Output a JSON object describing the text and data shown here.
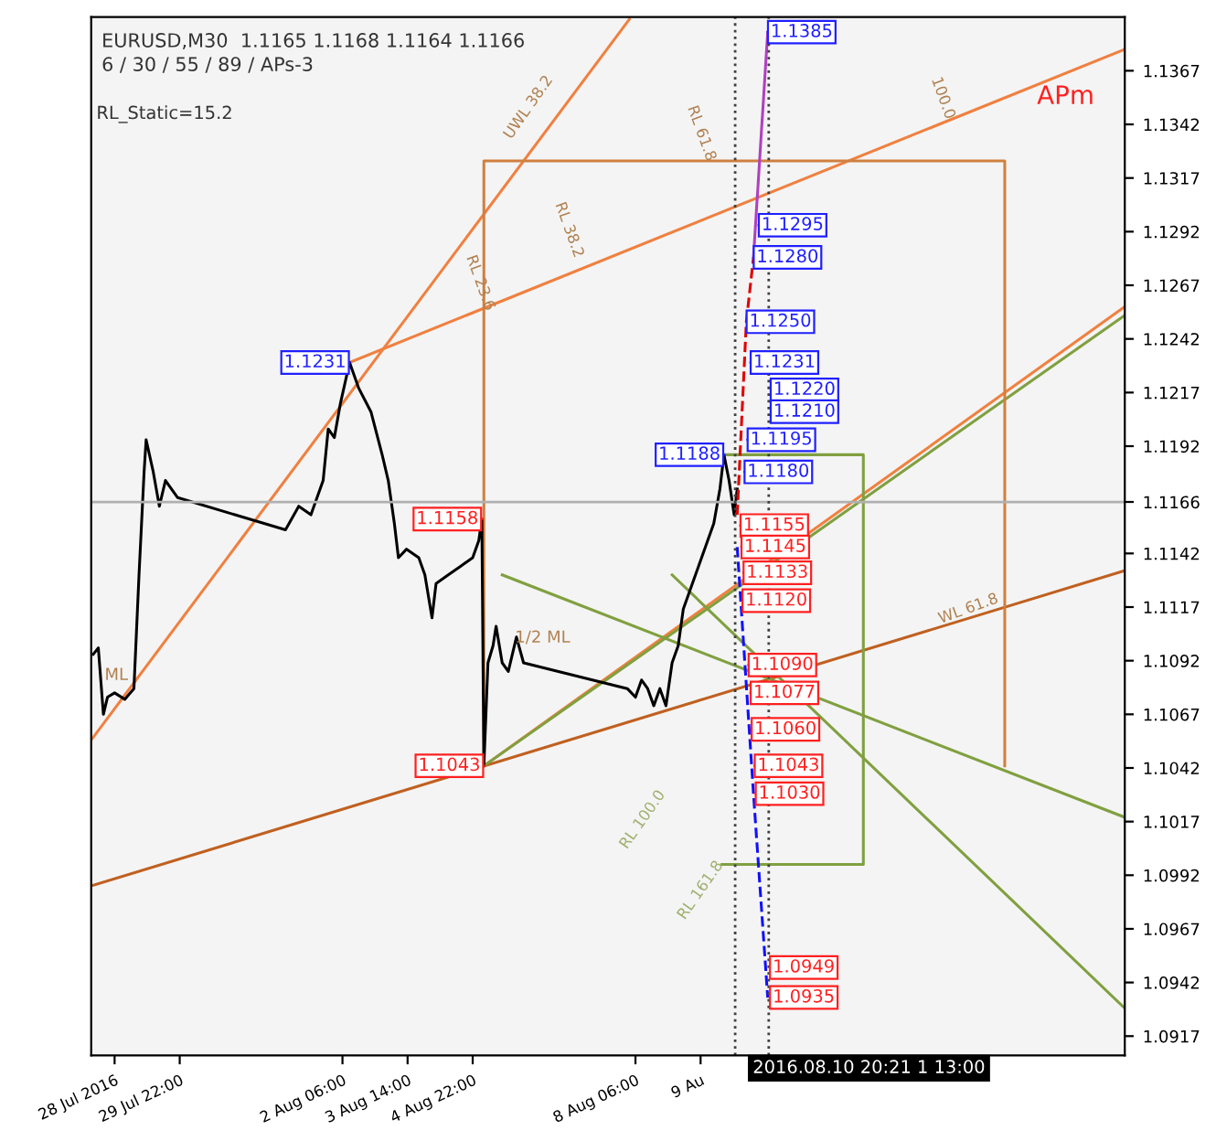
{
  "chart_data": {
    "type": "line",
    "title": "EURUSD,M30  1.1165 1.1168 1.1164 1.1166",
    "subtitle": "6 / 30 / 55 / 89 / APs-3",
    "xlim": [
      "2016-07-28T02:30",
      "2016-08-18T06:30"
    ],
    "ylim": [
      1.0908,
      1.1392
    ],
    "xticks": [
      {
        "value": "2016-07-28T14:00",
        "label": "28 Jul 2016"
      },
      {
        "value": "2016-07-29T22:00",
        "label": "29 Jul 22:00"
      },
      {
        "value": "2016-08-02T06:00",
        "label": "2 Aug 06:00"
      },
      {
        "value": "2016-08-03T14:00",
        "label": "3 Aug 14:00"
      },
      {
        "value": "2016-08-04T22:00",
        "label": "4 Aug 22:00"
      },
      {
        "value": "2016-08-08T06:00",
        "label": "8 Aug 06:00"
      },
      {
        "value": "2016-08-09T14:00",
        "label": "9 Au"
      }
    ],
    "yticks": [
      1.0917,
      1.0942,
      1.0967,
      1.0992,
      1.1017,
      1.1042,
      1.1067,
      1.1092,
      1.1117,
      1.1142,
      1.1166,
      1.1192,
      1.1217,
      1.1242,
      1.1267,
      1.1292,
      1.1317,
      1.1342,
      1.1367
    ],
    "grid": false,
    "legend": false,
    "series": [
      {
        "color": "#f08040",
        "x": [
          "2016-07-28T02:30",
          "2016-08-08T03:00"
        ],
        "values": [
          1.1055,
          1.1391
        ]
      },
      {
        "color": "#f08040",
        "x": [
          "2016-08-02T09:30",
          "2016-08-18T06:30"
        ],
        "values": [
          1.1231,
          1.1377
        ]
      },
      {
        "color": "#f08040",
        "x": [
          "2016-08-05T03:30",
          "2016-08-18T06:30"
        ],
        "values": [
          1.1043,
          1.1257
        ]
      },
      {
        "color": "#c06020",
        "x": [
          "2016-07-28T02:30",
          "2016-08-18T06:30"
        ],
        "values": [
          1.0987,
          1.1134
        ]
      },
      {
        "color": "#80a040",
        "x": [
          "2016-08-05T03:30",
          "2016-08-18T06:30"
        ],
        "values": [
          1.1043,
          1.1253
        ]
      },
      {
        "color": "#80a040",
        "x": [
          "2016-08-05T12:30",
          "2016-08-18T06:30"
        ],
        "values": [
          1.1132,
          1.1019
        ]
      },
      {
        "color": "#80a040",
        "x": [
          "2016-08-09T00:00",
          "2016-08-18T06:30"
        ],
        "values": [
          1.1132,
          1.093
        ]
      },
      {
        "color": "#d08040",
        "x": [
          "2016-08-05T03:30",
          "2016-08-05T03:30",
          "2016-08-15T19:30",
          "2016-08-15T19:30"
        ],
        "values": [
          1.1043,
          1.1325,
          1.1325,
          1.1043
        ]
      },
      {
        "color": "#80a040",
        "x": [
          "2016-08-10T00:30",
          "2016-08-12T22:00",
          "2016-08-12T22:00",
          "2016-08-10T00:30"
        ],
        "values": [
          1.1188,
          1.1188,
          1.0997,
          1.0997
        ]
      },
      {
        "color": "#000000",
        "x": [
          "2016-07-28T03:30",
          "2016-07-28T06:00",
          "2016-07-28T08:30",
          "2016-07-28T10:30",
          "2016-07-28T14:00",
          "2016-07-28T19:00",
          "2016-07-28T23:30",
          "2016-07-29T02:00",
          "2016-07-29T04:30",
          "2016-07-29T05:30",
          "2016-07-29T09:00",
          "2016-07-29T12:00",
          "2016-07-29T15:00",
          "2016-07-29T21:00",
          "2016-08-01T02:00",
          "2016-08-01T08:30",
          "2016-08-01T14:30",
          "2016-08-01T17:30",
          "2016-08-01T20:30",
          "2016-08-01T23:00",
          "2016-08-02T02:00",
          "2016-08-02T05:00",
          "2016-08-02T09:30",
          "2016-08-02T14:00",
          "2016-08-02T20:00",
          "2016-08-03T01:30",
          "2016-08-03T04:30",
          "2016-08-03T07:30",
          "2016-08-03T09:30",
          "2016-08-03T13:30",
          "2016-08-03T19:30",
          "2016-08-03T22:30",
          "2016-08-04T02:00",
          "2016-08-04T04:00",
          "2016-08-04T10:00",
          "2016-08-04T16:00",
          "2016-08-04T22:00",
          "2016-08-05T01:00",
          "2016-08-05T02:30",
          "2016-08-05T03:30",
          "2016-08-05T05:30",
          "2016-08-05T08:00",
          "2016-08-05T09:30",
          "2016-08-05T12:30",
          "2016-08-05T15:30",
          "2016-08-05T19:30",
          "2016-08-05T23:00",
          "2016-08-08T02:00",
          "2016-08-08T06:00",
          "2016-08-08T09:00",
          "2016-08-08T12:00",
          "2016-08-08T15:00",
          "2016-08-08T18:00",
          "2016-08-08T21:00",
          "2016-08-09T00:00",
          "2016-08-09T03:00",
          "2016-08-09T05:30",
          "2016-08-09T08:30",
          "2016-08-09T11:30",
          "2016-08-09T14:30",
          "2016-08-09T17:30",
          "2016-08-09T20:30",
          "2016-08-09T23:30",
          "2016-08-10T01:30",
          "2016-08-10T04:00",
          "2016-08-10T06:30",
          "2016-08-10T08:00"
        ],
        "values": [
          1.1095,
          1.1098,
          1.1067,
          1.1075,
          1.1077,
          1.1074,
          1.1079,
          1.1132,
          1.118,
          1.1195,
          1.118,
          1.1164,
          1.1176,
          1.1168,
          1.1153,
          1.1164,
          1.116,
          1.1168,
          1.1176,
          1.12,
          1.1196,
          1.1212,
          1.1231,
          1.1219,
          1.1208,
          1.1188,
          1.1176,
          1.1156,
          1.114,
          1.1144,
          1.114,
          1.1132,
          1.1112,
          1.1128,
          1.1132,
          1.1136,
          1.114,
          1.1148,
          1.1158,
          1.1043,
          1.1091,
          1.1099,
          1.1108,
          1.1091,
          1.1087,
          1.1103,
          1.1091,
          1.1079,
          1.1075,
          1.1083,
          1.1079,
          1.1071,
          1.1079,
          1.1071,
          1.1091,
          1.1099,
          1.1116,
          1.1124,
          1.1132,
          1.114,
          1.1148,
          1.1156,
          1.1172,
          1.1188,
          1.1176,
          1.116,
          1.1172
        ]
      },
      {
        "color": "#e00000",
        "line_style": "dashed",
        "x": [
          "2016-08-10T08:00",
          "2016-08-10T12:30",
          "2016-08-10T16:00"
        ],
        "values": [
          1.116,
          1.125,
          1.128
        ]
      },
      {
        "color": "#b040c0",
        "x": [
          "2016-08-10T16:00",
          "2016-08-10T23:00"
        ],
        "values": [
          1.128,
          1.1385
        ]
      },
      {
        "color": "#1010ff",
        "line_style": "dashed",
        "x": [
          "2016-08-10T08:00",
          "2016-08-10T16:00",
          "2016-08-10T23:00"
        ],
        "values": [
          1.1145,
          1.103,
          1.0935
        ]
      }
    ],
    "ref_lines": [
      {
        "axis": "y",
        "value": 1.1166,
        "color": "#b0b0b0"
      },
      {
        "axis": "x",
        "value": "2016-08-10T07:00",
        "color": "#404040",
        "line_style": "dotted"
      },
      {
        "axis": "x",
        "value": "2016-08-10T23:30",
        "color": "#404040",
        "line_style": "dotted"
      }
    ],
    "annotations": [
      "RL_Static=15.2",
      "APm",
      "2016.08.10 20:21 1 13:00",
      "1.1220",
      "1.1210",
      "RL 23.6",
      "RL 38.2",
      "RL 61.8",
      "RL 161.8",
      "RL 100.0",
      "1/2 ML",
      "ML",
      "UWL 38.2",
      "100.0",
      "WL 61.8",
      {
        "text": "1.1231",
        "x": "2016-08-02T09:30",
        "y": 1.1231
      },
      {
        "text": "1.1158",
        "x": "2016-08-05T02:30",
        "y": 1.1158
      },
      {
        "text": "1.1043",
        "x": "2016-08-05T03:30",
        "y": 1.1043
      },
      {
        "text": "1.1188",
        "x": "2016-08-10T01:30",
        "y": 1.1188
      },
      {
        "text": "1.1385",
        "x": "2016-08-10T23:00",
        "y": 1.1385
      },
      {
        "text": "1.1295",
        "x": "2016-08-10T18:30",
        "y": 1.1295
      },
      {
        "text": "1.1280",
        "x": "2016-08-10T16:00",
        "y": 1.128
      },
      {
        "text": "1.1250",
        "x": "2016-08-10T12:30",
        "y": 1.125
      },
      {
        "text": "1.1231",
        "x": "2016-08-10T14:30",
        "y": 1.1231
      },
      {
        "text": "1.1195",
        "x": "2016-08-10T13:00",
        "y": 1.1195
      },
      {
        "text": "1.1180",
        "x": "2016-08-10T11:30",
        "y": 1.118
      },
      {
        "text": "1.1155",
        "x": "2016-08-10T09:30",
        "y": 1.1155
      },
      {
        "text": "1.1145",
        "x": "2016-08-10T10:00",
        "y": 1.1145
      },
      {
        "text": "1.1133",
        "x": "2016-08-10T11:00",
        "y": 1.1133
      },
      {
        "text": "1.1120",
        "x": "2016-08-10T10:30",
        "y": 1.112
      },
      {
        "text": "1.1090",
        "x": "2016-08-10T13:30",
        "y": 1.109
      },
      {
        "text": "1.1077",
        "x": "2016-08-10T14:30",
        "y": 1.1077
      },
      {
        "text": "1.1060",
        "x": "2016-08-10T15:00",
        "y": 1.106
      },
      {
        "text": "1.1043",
        "x": "2016-08-10T16:30",
        "y": 1.1043
      },
      {
        "text": "1.1030",
        "x": "2016-08-10T17:00",
        "y": 1.103
      },
      {
        "text": "1.0949",
        "x": "2016-08-11T00:00",
        "y": 1.0949
      },
      {
        "text": "1.0935",
        "x": "2016-08-11T00:00",
        "y": 1.0935
      }
    ]
  }
}
